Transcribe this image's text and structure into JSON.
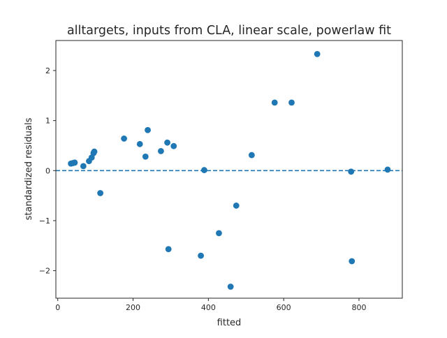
{
  "chart_data": {
    "type": "scatter",
    "title": "alltargets, inputs from CLA, linear scale, powerlaw fit",
    "xlabel": "fitted",
    "ylabel": "standardized residuals",
    "xlim": [
      -5,
      915
    ],
    "ylim": [
      -2.55,
      2.6
    ],
    "xticks": [
      {
        "value": 0,
        "label": "0"
      },
      {
        "value": 200,
        "label": "200"
      },
      {
        "value": 400,
        "label": "400"
      },
      {
        "value": 600,
        "label": "600"
      },
      {
        "value": 800,
        "label": "800"
      }
    ],
    "yticks": [
      {
        "value": -2,
        "label": "−2"
      },
      {
        "value": -1,
        "label": "−1"
      },
      {
        "value": 0,
        "label": "0"
      },
      {
        "value": 1,
        "label": "1"
      },
      {
        "value": 2,
        "label": "2"
      }
    ],
    "reference_line": {
      "y": 0,
      "style": "dashed"
    },
    "grid": false,
    "marker_color": "#1f77b4",
    "points": [
      {
        "x": 35,
        "y": 0.14
      },
      {
        "x": 40,
        "y": 0.15
      },
      {
        "x": 45,
        "y": 0.16
      },
      {
        "x": 68,
        "y": 0.09
      },
      {
        "x": 83,
        "y": 0.19
      },
      {
        "x": 90,
        "y": 0.26
      },
      {
        "x": 95,
        "y": 0.35
      },
      {
        "x": 97,
        "y": 0.38
      },
      {
        "x": 113,
        "y": -0.45
      },
      {
        "x": 176,
        "y": 0.64
      },
      {
        "x": 218,
        "y": 0.53
      },
      {
        "x": 233,
        "y": 0.28
      },
      {
        "x": 239,
        "y": 0.81
      },
      {
        "x": 274,
        "y": 0.39
      },
      {
        "x": 291,
        "y": 0.56
      },
      {
        "x": 294,
        "y": -1.57
      },
      {
        "x": 308,
        "y": 0.49
      },
      {
        "x": 380,
        "y": -1.7
      },
      {
        "x": 389,
        "y": 0.01
      },
      {
        "x": 428,
        "y": -1.25
      },
      {
        "x": 459,
        "y": -2.32
      },
      {
        "x": 474,
        "y": -0.7
      },
      {
        "x": 515,
        "y": 0.31
      },
      {
        "x": 576,
        "y": 1.36
      },
      {
        "x": 621,
        "y": 1.36
      },
      {
        "x": 689,
        "y": 2.33
      },
      {
        "x": 779,
        "y": -0.02
      },
      {
        "x": 781,
        "y": -1.81
      },
      {
        "x": 876,
        "y": 0.02
      }
    ]
  }
}
